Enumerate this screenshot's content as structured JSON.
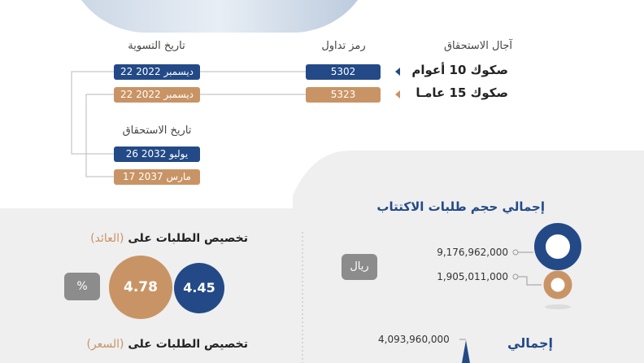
{
  "header": {
    "maturity_col": "آجال الاستحقاق",
    "ticker_col": "رمز تداول",
    "settlement_col": "تاريخ التسوية",
    "maturity_date_label": "تاريخ الاستحقاق"
  },
  "bonds": [
    {
      "name": "صكوك 10 أعوام",
      "ticker": "5302",
      "settlement": "22 ديسمبر 2022",
      "maturity": "26 يوليو 2032",
      "color": "#234a87"
    },
    {
      "name": "صكوك 15 عامـا",
      "ticker": "5323",
      "settlement": "22 ديسمبر 2022",
      "maturity": "17 مارس 2037",
      "color": "#c99465"
    }
  ],
  "subscriptions": {
    "title": "إجمالي حجم طلبات الاكتتاب",
    "currency": "ريال",
    "values": [
      "9,176,962,000",
      "1,905,011,000"
    ]
  },
  "yield_allocation": {
    "title_main": "تخصيص الطلبات على",
    "title_paren": "(العائد)",
    "unit": "%",
    "values": [
      "4.78",
      "4.45"
    ]
  },
  "price_allocation": {
    "title_main": "تخصيص الطلبات على",
    "title_paren": "(السعر)"
  },
  "total": {
    "label": "إجمالي",
    "value": "4,093,960,000"
  }
}
